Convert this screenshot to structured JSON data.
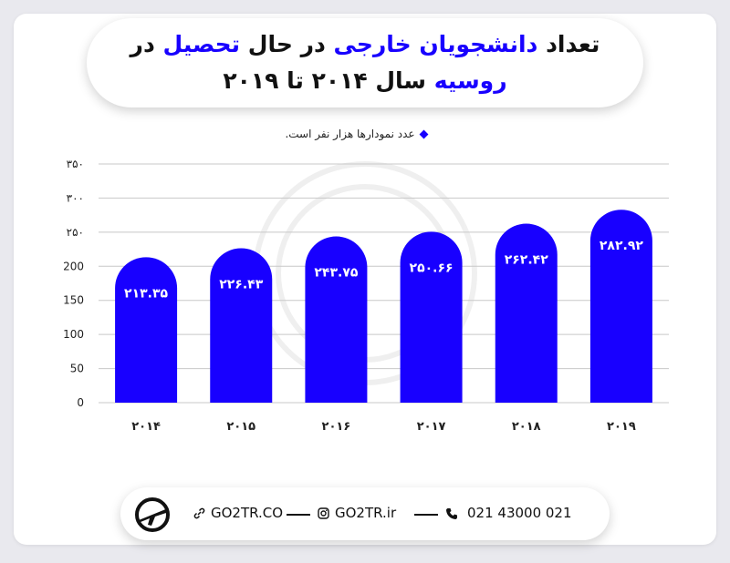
{
  "title": {
    "line1_prefix": "تعداد",
    "line1_highlight": "دانشجویان خارجی",
    "line1_mid": "در حال",
    "line1_highlight2": "تحصیل",
    "line1_suffix": "در",
    "line2_highlight": "روسیه",
    "line2_suffix": "سال ۲۰۱۴ تا ۲۰۱۹"
  },
  "note": "عدد نمودارها هزار نفر است.",
  "colors": {
    "bar": "#1800ff",
    "accent": "#1800ff",
    "grid": "#c8c8c8",
    "text": "#222222"
  },
  "chart_data": {
    "type": "bar",
    "categories": [
      "۲۰۱۴",
      "۲۰۱۵",
      "۲۰۱۶",
      "۲۰۱۷",
      "۲۰۱۸",
      "۲۰۱۹"
    ],
    "values": [
      213.35,
      226.43,
      243.75,
      250.66,
      262.42,
      282.92
    ],
    "value_labels": [
      "۲۱۳.۳۵",
      "۲۲۶.۴۳",
      "۲۴۳.۷۵",
      "۲۵۰.۶۶",
      "۲۶۲.۴۲",
      "۲۸۲.۹۲"
    ],
    "ylim": [
      0,
      350
    ],
    "y_ticks": [
      0,
      50,
      100,
      150,
      200,
      250,
      300,
      350
    ],
    "y_tick_labels": [
      "0",
      "50",
      "100",
      "150",
      "200",
      "۲۵۰",
      "۳۰۰",
      "۳۵۰"
    ],
    "grid": true,
    "xlabel": "",
    "ylabel": "",
    "note": "عدد نمودارها هزار نفر است."
  },
  "footer": {
    "website": "GO2TR.CO",
    "instagram": "GO2TR.ir",
    "phone": "021 43000 021",
    "icons": [
      "go2tr-logo-icon",
      "link-icon",
      "instagram-icon",
      "phone-icon"
    ]
  }
}
